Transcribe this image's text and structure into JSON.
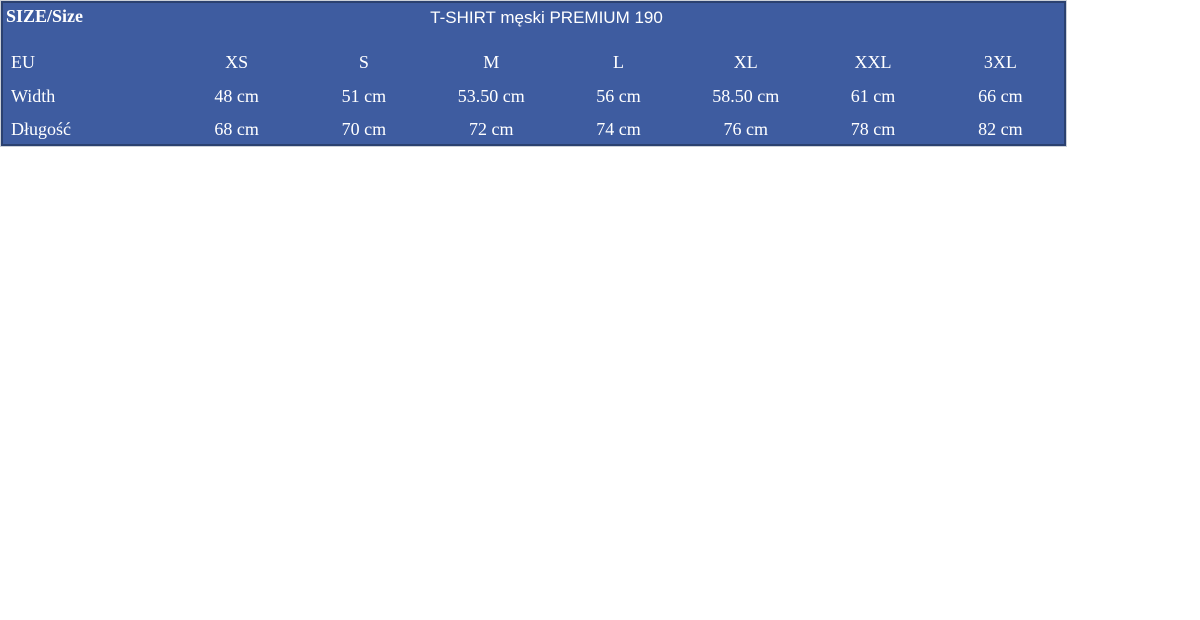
{
  "table": {
    "corner_label": "SIZE/Size",
    "title": "T-SHIRT męski PREMIUM 190",
    "colors": {
      "background": "#3e5ca0",
      "border": "#2b4170",
      "text": "#ffffff",
      "outer_line": "#ccd1d9",
      "page_background": "#ffffff"
    },
    "rows": [
      {
        "label": "EU",
        "values": [
          "XS",
          "S",
          "M",
          "L",
          "XL",
          "XXL",
          "3XL"
        ]
      },
      {
        "label": "Width",
        "values": [
          "48 cm",
          "51 cm",
          "53.50 cm",
          "56 cm",
          "58.50 cm",
          "61 cm",
          "66 cm"
        ]
      },
      {
        "label": "Długość",
        "values": [
          "68 cm",
          "70 cm",
          "72 cm",
          "74 cm",
          "76 cm",
          "78 cm",
          "82 cm"
        ]
      }
    ]
  }
}
